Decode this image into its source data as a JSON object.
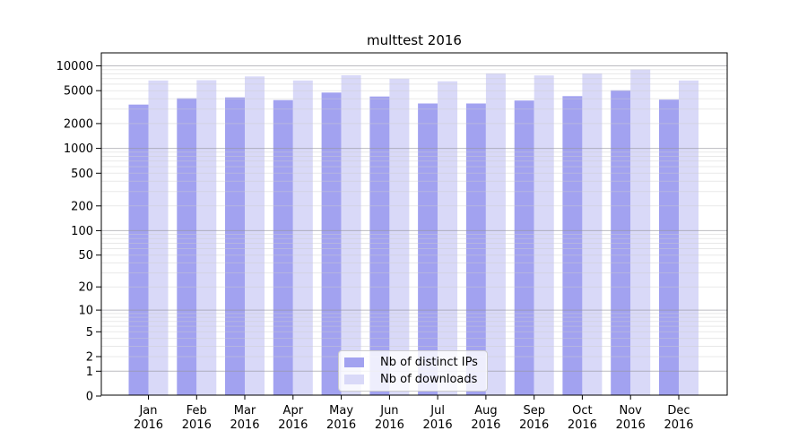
{
  "title": "multtest 2016",
  "chart_data": {
    "type": "bar",
    "title": "multtest 2016",
    "categories": [
      "Jan",
      "Feb",
      "Mar",
      "Apr",
      "May",
      "Jun",
      "Jul",
      "Aug",
      "Sep",
      "Oct",
      "Nov",
      "Dec"
    ],
    "category_year": "2016",
    "series": [
      {
        "name": "Nb of distinct IPs",
        "color": "#a2a2f0",
        "values": [
          3400,
          4050,
          4150,
          3850,
          4750,
          4250,
          3500,
          3500,
          3800,
          4300,
          5050,
          3900
        ]
      },
      {
        "name": "Nb of downloads",
        "color": "#d9d9f8",
        "values": [
          6650,
          6700,
          7450,
          6650,
          7700,
          7000,
          6500,
          8100,
          7650,
          8100,
          9050,
          6650
        ]
      }
    ],
    "xlabel": "",
    "ylabel": "",
    "yscale": "log1p",
    "ylim": [
      0,
      10000
    ],
    "y_ticks": [
      0,
      1,
      2,
      5,
      10,
      20,
      50,
      100,
      200,
      500,
      1000,
      2000,
      5000,
      10000
    ],
    "grid": "horizontal major+minor log gridlines, drawn over bars",
    "legend_position": "inside lower-center"
  }
}
